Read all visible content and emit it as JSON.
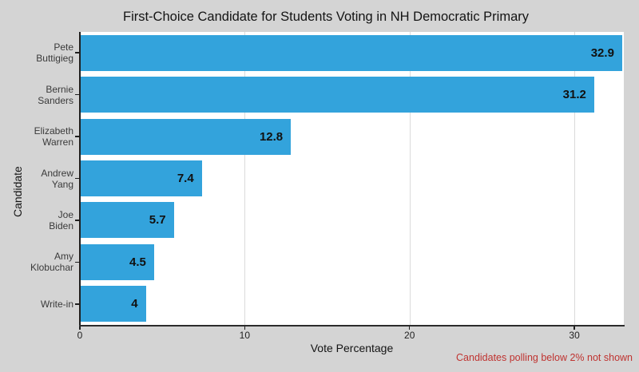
{
  "chart_data": {
    "type": "bar",
    "orientation": "horizontal",
    "title": "First-Choice Candidate for Students Voting in NH Democratic Primary",
    "categories": [
      "Pete Buttigieg",
      "Bernie Sanders",
      "Elizabeth Warren",
      "Andrew Yang",
      "Joe Biden",
      "Amy Klobuchar",
      "Write-in"
    ],
    "category_lines": [
      [
        "Pete",
        "Buttigieg"
      ],
      [
        "Bernie",
        "Sanders"
      ],
      [
        "Elizabeth",
        "Warren"
      ],
      [
        "Andrew",
        "Yang"
      ],
      [
        "Joe",
        "Biden"
      ],
      [
        "Amy",
        "Klobuchar"
      ],
      [
        "Write-in"
      ]
    ],
    "values": [
      32.9,
      31.2,
      12.8,
      7.4,
      5.7,
      4.5,
      4
    ],
    "value_labels": [
      "32.9",
      "31.2",
      "12.8",
      "7.4",
      "5.7",
      "4.5",
      "4"
    ],
    "xlabel": "Vote Percentage",
    "ylabel": "Candidate",
    "xlim": [
      0,
      33
    ],
    "x_ticks": [
      0,
      10,
      20,
      30
    ],
    "grid": true,
    "legend": "none",
    "note": "Candidates polling below 2% not shown",
    "colors": {
      "bar": "#33A3DC",
      "figure_background": "#D4D4D4",
      "plot_background": "#FFFFFF",
      "gridline": "#DADADA",
      "axis": "#1F1F1F",
      "text": "#141414",
      "note": "#BF3330"
    }
  }
}
